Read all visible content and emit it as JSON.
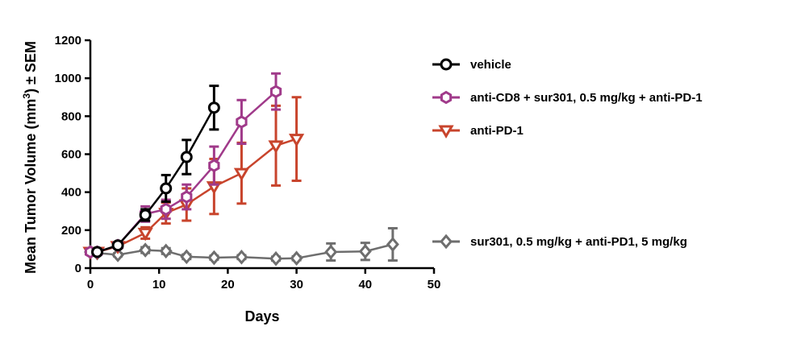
{
  "chart_data": {
    "type": "line",
    "title": "",
    "xlabel": "Days",
    "ylabel": "Mean Tumor Volume (mm³) ± SEM",
    "xlim": [
      0,
      50
    ],
    "ylim": [
      0,
      1200
    ],
    "xticks": [
      0,
      10,
      20,
      30,
      40,
      50
    ],
    "yticks": [
      0,
      200,
      400,
      600,
      800,
      1000,
      1200
    ],
    "grid": false,
    "legend_position": "right",
    "series": [
      {
        "name": "vehicle",
        "color": "#000000",
        "marker": "circle",
        "x": [
          1,
          4,
          8,
          11,
          14,
          18
        ],
        "y": [
          85,
          120,
          280,
          420,
          585,
          845
        ],
        "err": [
          10,
          10,
          30,
          70,
          90,
          115
        ]
      },
      {
        "name": "anti-CD8 + sur301, 0.5 mg/kg + anti-PD-1",
        "color": "#a03a8a",
        "marker": "hexagon",
        "x": [
          0,
          1,
          4,
          8,
          11,
          14,
          18,
          22,
          27
        ],
        "y": [
          85,
          85,
          120,
          285,
          310,
          375,
          540,
          770,
          930
        ],
        "err": [
          8,
          8,
          10,
          40,
          50,
          65,
          100,
          115,
          95
        ]
      },
      {
        "name": "anti-PD-1",
        "color": "#c8442c",
        "marker": "triangle-down",
        "x": [
          0,
          1,
          4,
          8,
          11,
          14,
          18,
          22,
          27,
          30
        ],
        "y": [
          85,
          85,
          115,
          185,
          290,
          335,
          430,
          500,
          645,
          680
        ],
        "err": [
          8,
          8,
          10,
          30,
          55,
          85,
          145,
          160,
          210,
          220
        ]
      },
      {
        "name": "sur301, 0.5 mg/kg + anti-PD1, 5 mg/kg",
        "color": "#6e6e6e",
        "marker": "diamond",
        "x": [
          0,
          1,
          4,
          8,
          11,
          14,
          18,
          22,
          27,
          30,
          35,
          40,
          44
        ],
        "y": [
          85,
          80,
          70,
          95,
          90,
          60,
          55,
          58,
          50,
          52,
          85,
          88,
          125
        ],
        "err": [
          8,
          8,
          8,
          15,
          15,
          12,
          10,
          10,
          10,
          10,
          45,
          45,
          85
        ]
      }
    ]
  }
}
